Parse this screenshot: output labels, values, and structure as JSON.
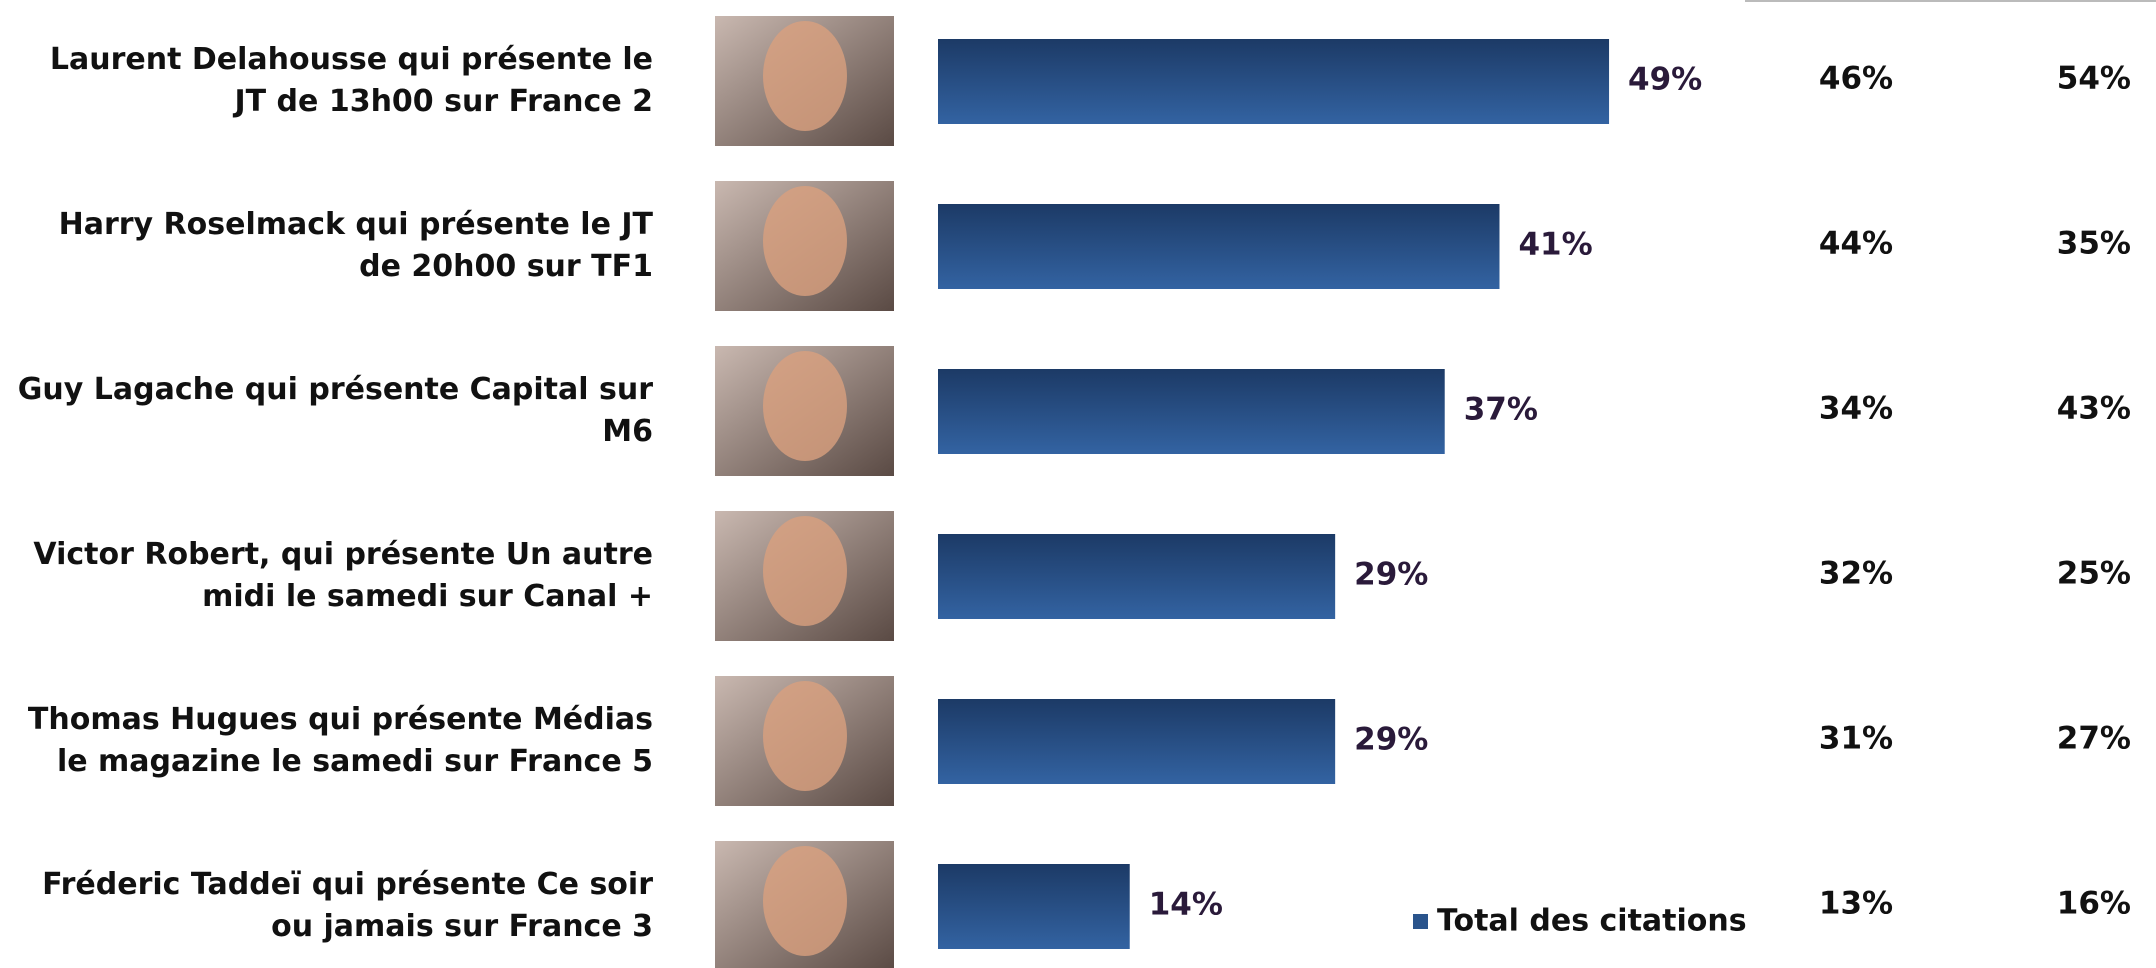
{
  "chart_data": {
    "type": "bar",
    "categories": [
      "Laurent Delahousse qui présente le JT de 13h00 sur France 2",
      "Harry Roselmack qui présente le JT de 20h00 sur TF1",
      "Guy Lagache qui présente Capital sur M6",
      "Victor Robert, qui présente Un autre midi le samedi sur Canal +",
      "Thomas Hugues qui présente Médias le magazine le samedi sur France 5",
      "Fréderic Taddeï qui présente Ce soir ou jamais sur France 3"
    ],
    "series": [
      {
        "name": "Total des citations",
        "color": "#2a548c",
        "values": [
          49,
          41,
          37,
          29,
          29,
          14
        ],
        "value_labels": [
          "49%",
          "41%",
          "37%",
          "29%",
          "29%",
          "14%"
        ]
      }
    ],
    "columns": [
      [
        "46%",
        "44%",
        "34%",
        "32%",
        "31%",
        "13%"
      ],
      [
        "54%",
        "35%",
        "43%",
        "25%",
        "27%",
        "16%"
      ]
    ]
  }
}
